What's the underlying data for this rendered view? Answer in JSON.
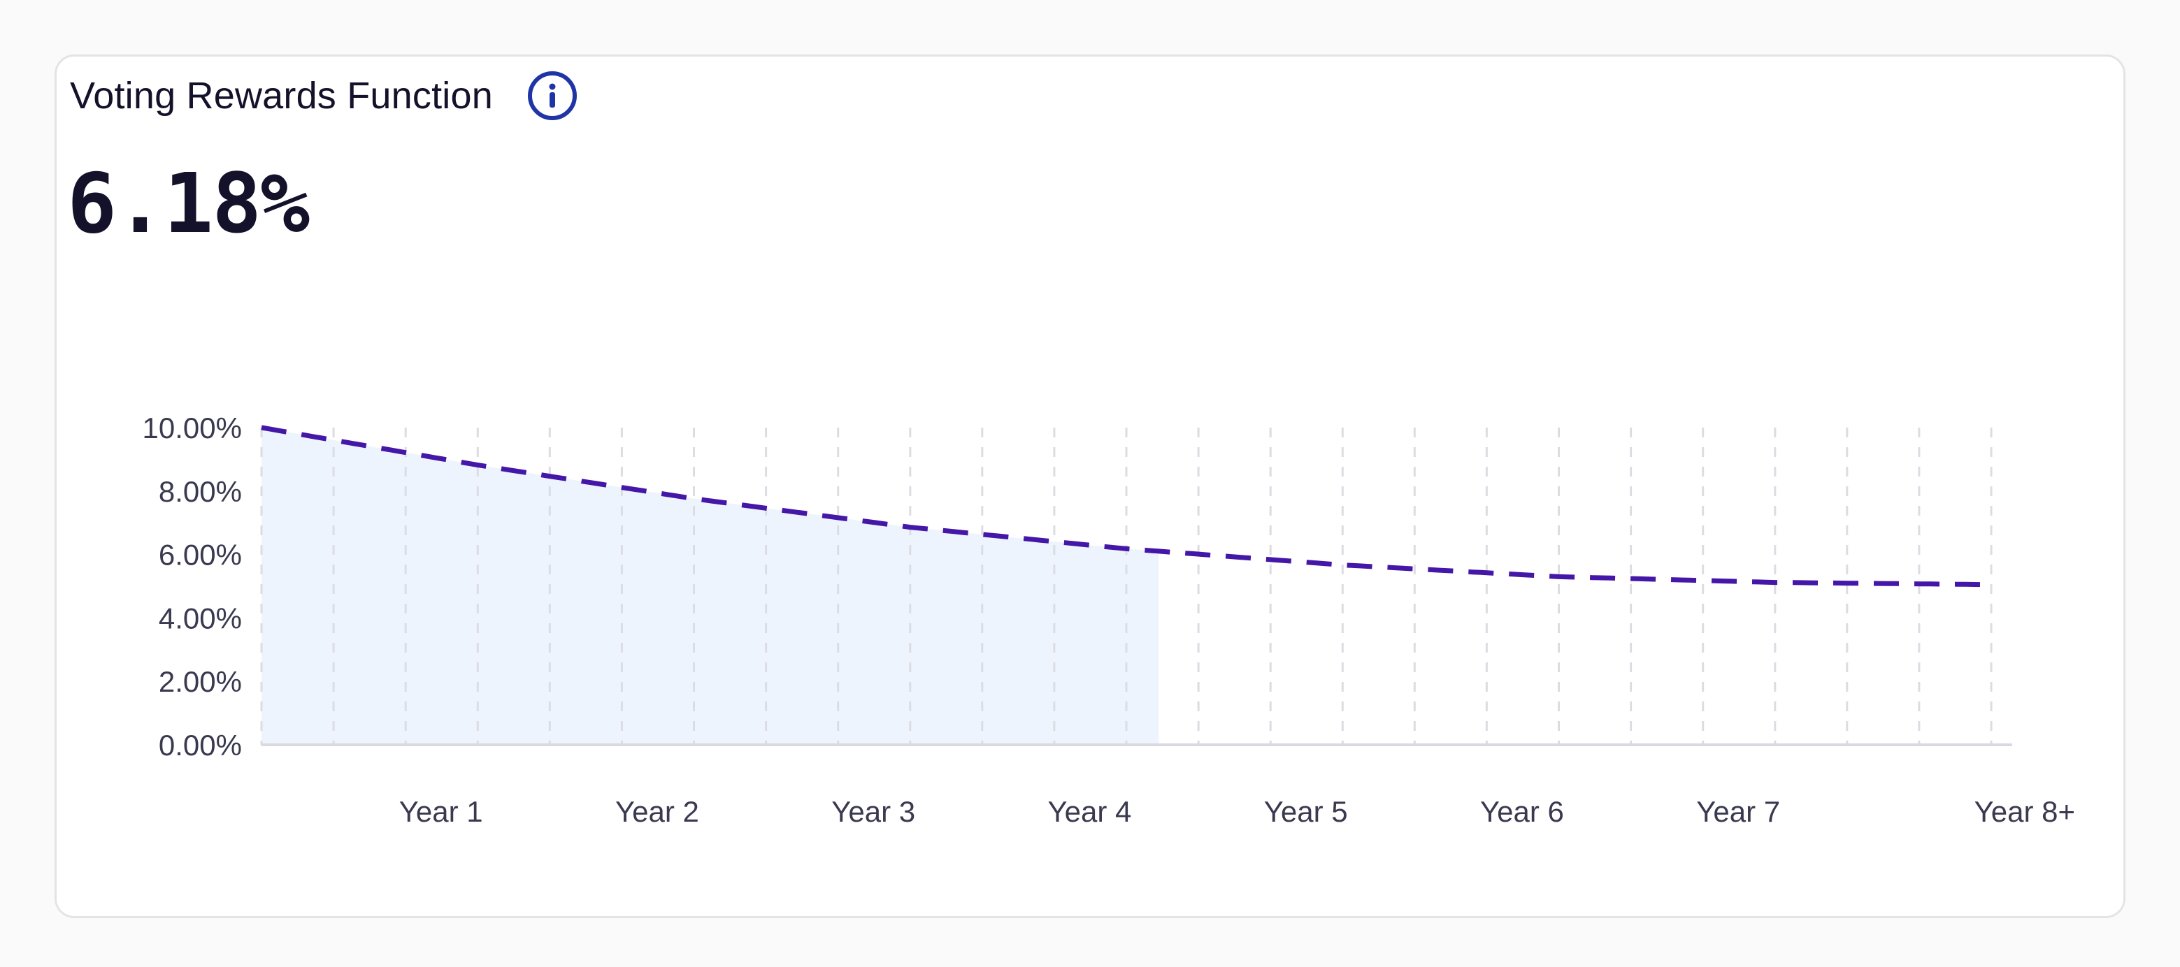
{
  "card": {
    "title": "Voting Rewards Function",
    "current_value": "6.18%"
  },
  "icons": {
    "info": "info-circle-icon"
  },
  "colors": {
    "line": "#4417a8",
    "fill": "#eef4fd",
    "grid": "#dcdce3",
    "axis": "#d9d9e0",
    "info_icon": "#1f35a6",
    "text": "#14112a",
    "tick_text": "#3a3950"
  },
  "chart_data": {
    "type": "line",
    "ylim": [
      0,
      10
    ],
    "yticks": [
      0,
      2,
      4,
      6,
      8,
      10
    ],
    "ytick_labels": [
      "0.00%",
      "2.00%",
      "4.00%",
      "6.00%",
      "8.00%",
      "10.00%"
    ],
    "xlim": [
      0,
      8
    ],
    "xticks": [
      1,
      2,
      3,
      4,
      5,
      6,
      7,
      8
    ],
    "xtick_labels": [
      "Year 1",
      "Year 2",
      "Year 3",
      "Year 4",
      "Year 5",
      "Year 6",
      "Year 7",
      "Year 8+"
    ],
    "grid": "vertical dashed",
    "series": [
      {
        "style": "dashed",
        "x": [
          0,
          1,
          2,
          3,
          4,
          5,
          6,
          7,
          8
        ],
        "values": [
          10.0,
          8.82,
          7.76,
          6.86,
          6.18,
          5.67,
          5.3,
          5.12,
          5.05
        ]
      }
    ],
    "shaded_region": {
      "x": [
        0,
        4.15
      ]
    }
  }
}
